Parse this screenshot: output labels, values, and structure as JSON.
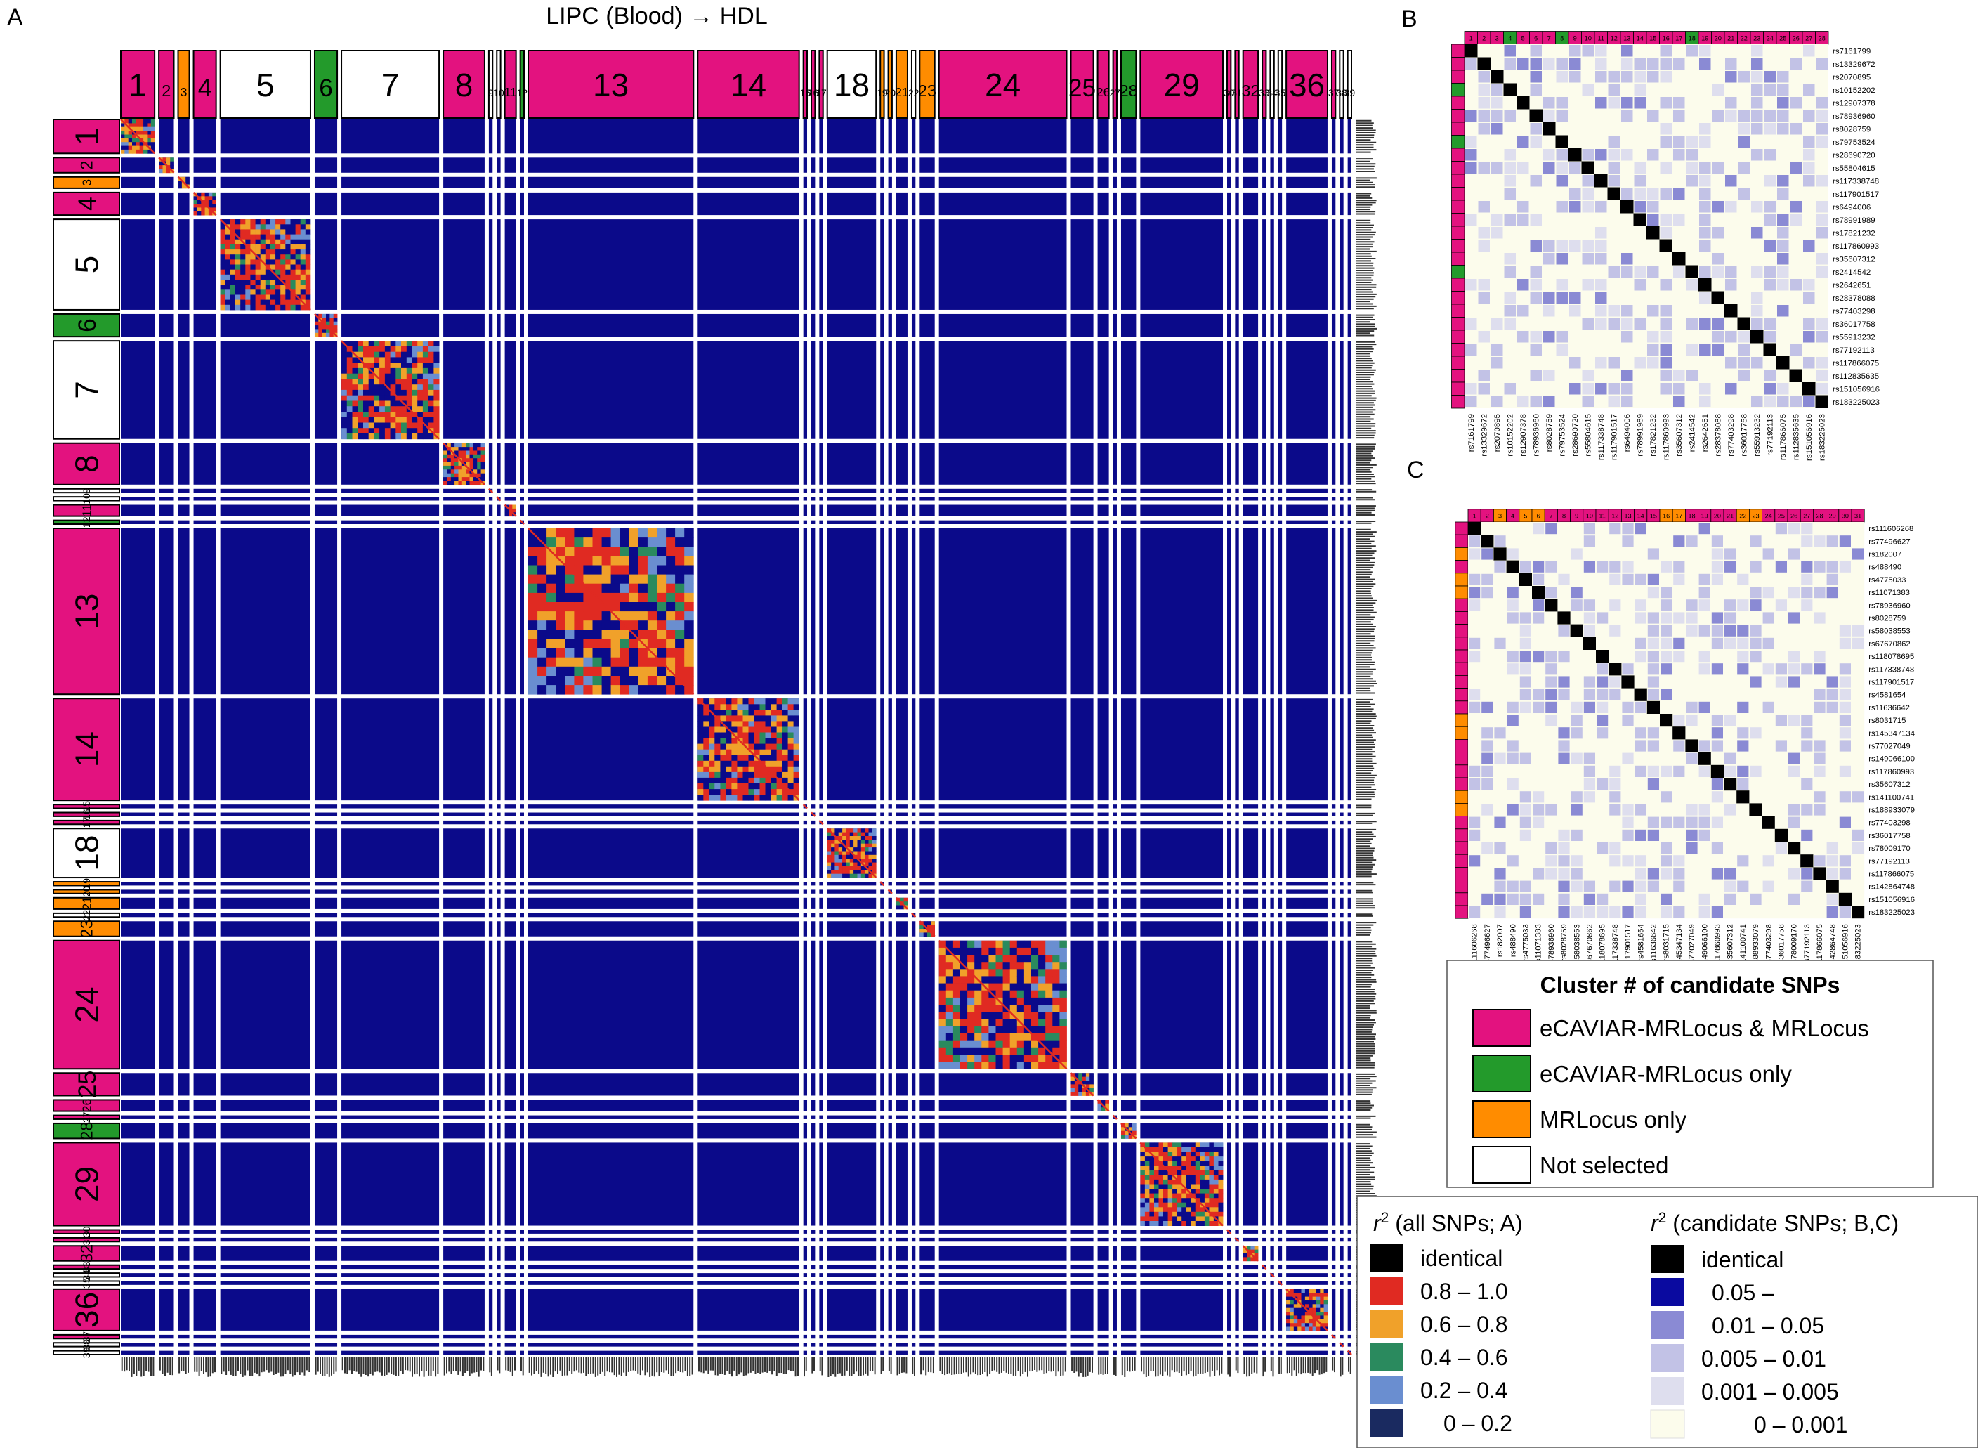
{
  "panels": {
    "a": {
      "letter": "A",
      "title": "LIPC (Blood) → HDL"
    },
    "b": {
      "letter": "B"
    },
    "c": {
      "letter": "C"
    }
  },
  "colors": {
    "matrix_bg": "#0b0a8a",
    "pink": "#e3127f",
    "green": "#239a2b",
    "orange": "#ff8c00",
    "white": "#ffffff",
    "identical": "#000000",
    "r_08_10": "#e02a22",
    "r_06_08": "#f0a12a",
    "r_04_06": "#2a8a5e",
    "r_02_04": "#6a8ed0",
    "r_00_02": "#1a2a60",
    "c_005": "#0a0aa0",
    "c_001_005": "#8a8ad4",
    "c_0005_001": "#c2c2e6",
    "c_0001_0005": "#dedeee",
    "c_0_0001": "#fcfcec"
  },
  "chart_data": [
    {
      "panel": "A",
      "type": "heatmap",
      "title": "LIPC (Blood) → HDL",
      "cluster_labels": [
        "1",
        "2",
        "3",
        "4",
        "5",
        "6",
        "7",
        "8",
        "9",
        "10",
        "11",
        "12",
        "13",
        "14",
        "15",
        "16",
        "17",
        "18",
        "19",
        "20",
        "21",
        "22",
        "23",
        "24",
        "25",
        "26",
        "27",
        "28",
        "29",
        "30",
        "31",
        "32",
        "33",
        "34",
        "35",
        "36",
        "37",
        "38",
        "39"
      ],
      "cluster_sizes": [
        9,
        4,
        3,
        6,
        24,
        6,
        26,
        11,
        1,
        1,
        3,
        1,
        44,
        27,
        1,
        1,
        1,
        13,
        1,
        1,
        3,
        1,
        4,
        34,
        6,
        3,
        1,
        4,
        22,
        1,
        1,
        4,
        1,
        1,
        1,
        11,
        1,
        1,
        1
      ],
      "cluster_status": [
        "pink",
        "pink",
        "orange",
        "pink",
        "white",
        "green",
        "white",
        "pink",
        "white",
        "white",
        "pink",
        "green",
        "pink",
        "pink",
        "pink",
        "pink",
        "pink",
        "white",
        "orange",
        "orange",
        "orange",
        "white",
        "orange",
        "pink",
        "pink",
        "pink",
        "pink",
        "green",
        "pink",
        "pink",
        "pink",
        "pink",
        "pink",
        "white",
        "white",
        "pink",
        "pink",
        "white",
        "white"
      ]
    },
    {
      "panel": "B",
      "type": "heatmap",
      "snps": [
        "rs7161799",
        "rs13329672",
        "rs2070895",
        "rs10152202",
        "rs12907378",
        "rs78936960",
        "rs8028759",
        "rs79753524",
        "rs28690720",
        "rs55804615",
        "rs117338748",
        "rs117901517",
        "rs6494006",
        "rs78991989",
        "rs17821232",
        "rs117860993",
        "rs35607312",
        "rs2414542",
        "rs2642651",
        "rs28378088",
        "rs77403298",
        "rs36017758",
        "rs55913232",
        "rs77192113",
        "rs117866075",
        "rs112835635",
        "rs151056916",
        "rs183225023"
      ],
      "cluster_status": [
        "pink",
        "pink",
        "pink",
        "green",
        "pink",
        "pink",
        "pink",
        "green",
        "pink",
        "pink",
        "pink",
        "pink",
        "pink",
        "pink",
        "pink",
        "pink",
        "pink",
        "green",
        "pink",
        "pink",
        "pink",
        "pink",
        "pink",
        "pink",
        "pink",
        "pink",
        "pink",
        "pink"
      ]
    },
    {
      "panel": "C",
      "type": "heatmap",
      "snps": [
        "rs111606268",
        "rs77496627",
        "rs182007",
        "rs488490",
        "rs4775033",
        "rs11071383",
        "rs78936960",
        "rs8028759",
        "rs58038553",
        "rs67670862",
        "rs118078695",
        "rs117338748",
        "rs117901517",
        "rs4581654",
        "rs11636642",
        "rs8031715",
        "rs145347134",
        "rs77027049",
        "rs149066100",
        "rs117860993",
        "rs35607312",
        "rs141100741",
        "rs188933079",
        "rs77403298",
        "rs36017758",
        "rs78009170",
        "rs77192113",
        "rs117866075",
        "rs142864748",
        "rs151056916",
        "rs183225023"
      ],
      "cluster_status": [
        "pink",
        "pink",
        "orange",
        "pink",
        "orange",
        "orange",
        "pink",
        "pink",
        "pink",
        "pink",
        "pink",
        "pink",
        "pink",
        "pink",
        "pink",
        "orange",
        "orange",
        "pink",
        "pink",
        "pink",
        "pink",
        "orange",
        "orange",
        "pink",
        "pink",
        "pink",
        "pink",
        "pink",
        "pink",
        "pink",
        "pink"
      ]
    }
  ],
  "legend_cluster": {
    "title": "Cluster # of candidate SNPs",
    "items": [
      {
        "label": "eCAVIAR-MRLocus & MRLocus",
        "color": "#e3127f"
      },
      {
        "label": "eCAVIAR-MRLocus only",
        "color": "#239a2b"
      },
      {
        "label": "MRLocus only",
        "color": "#ff8c00"
      },
      {
        "label": "Not selected",
        "color": "#ffffff"
      }
    ]
  },
  "legend_r2": {
    "r_symbol": "r",
    "sup": "2",
    "left_title": " (all SNPs; A)",
    "right_title": " (candidate SNPs; B,C)",
    "left_items": [
      {
        "label": "identical",
        "color": "#000000"
      },
      {
        "label": "0.8 – 1.0",
        "color": "#e02a22"
      },
      {
        "label": "0.6 – 0.8",
        "color": "#f0a12a"
      },
      {
        "label": "0.4 – 0.6",
        "color": "#2a8a5e"
      },
      {
        "label": "0.2 – 0.4",
        "color": "#6a8ed0"
      },
      {
        "label": "0 – 0.2",
        "color": "#1a2a60"
      }
    ],
    "right_items": [
      {
        "label": "identical",
        "color": "#000000"
      },
      {
        "label": "0.05 –",
        "color": "#0a0aa0"
      },
      {
        "label": "0.01 – 0.05",
        "color": "#8a8ad4"
      },
      {
        "label": "0.005 – 0.01",
        "color": "#c2c2e6"
      },
      {
        "label": "0.001 – 0.005",
        "color": "#dedeee"
      },
      {
        "label": "0 – 0.001",
        "color": "#fcfcec"
      }
    ]
  }
}
